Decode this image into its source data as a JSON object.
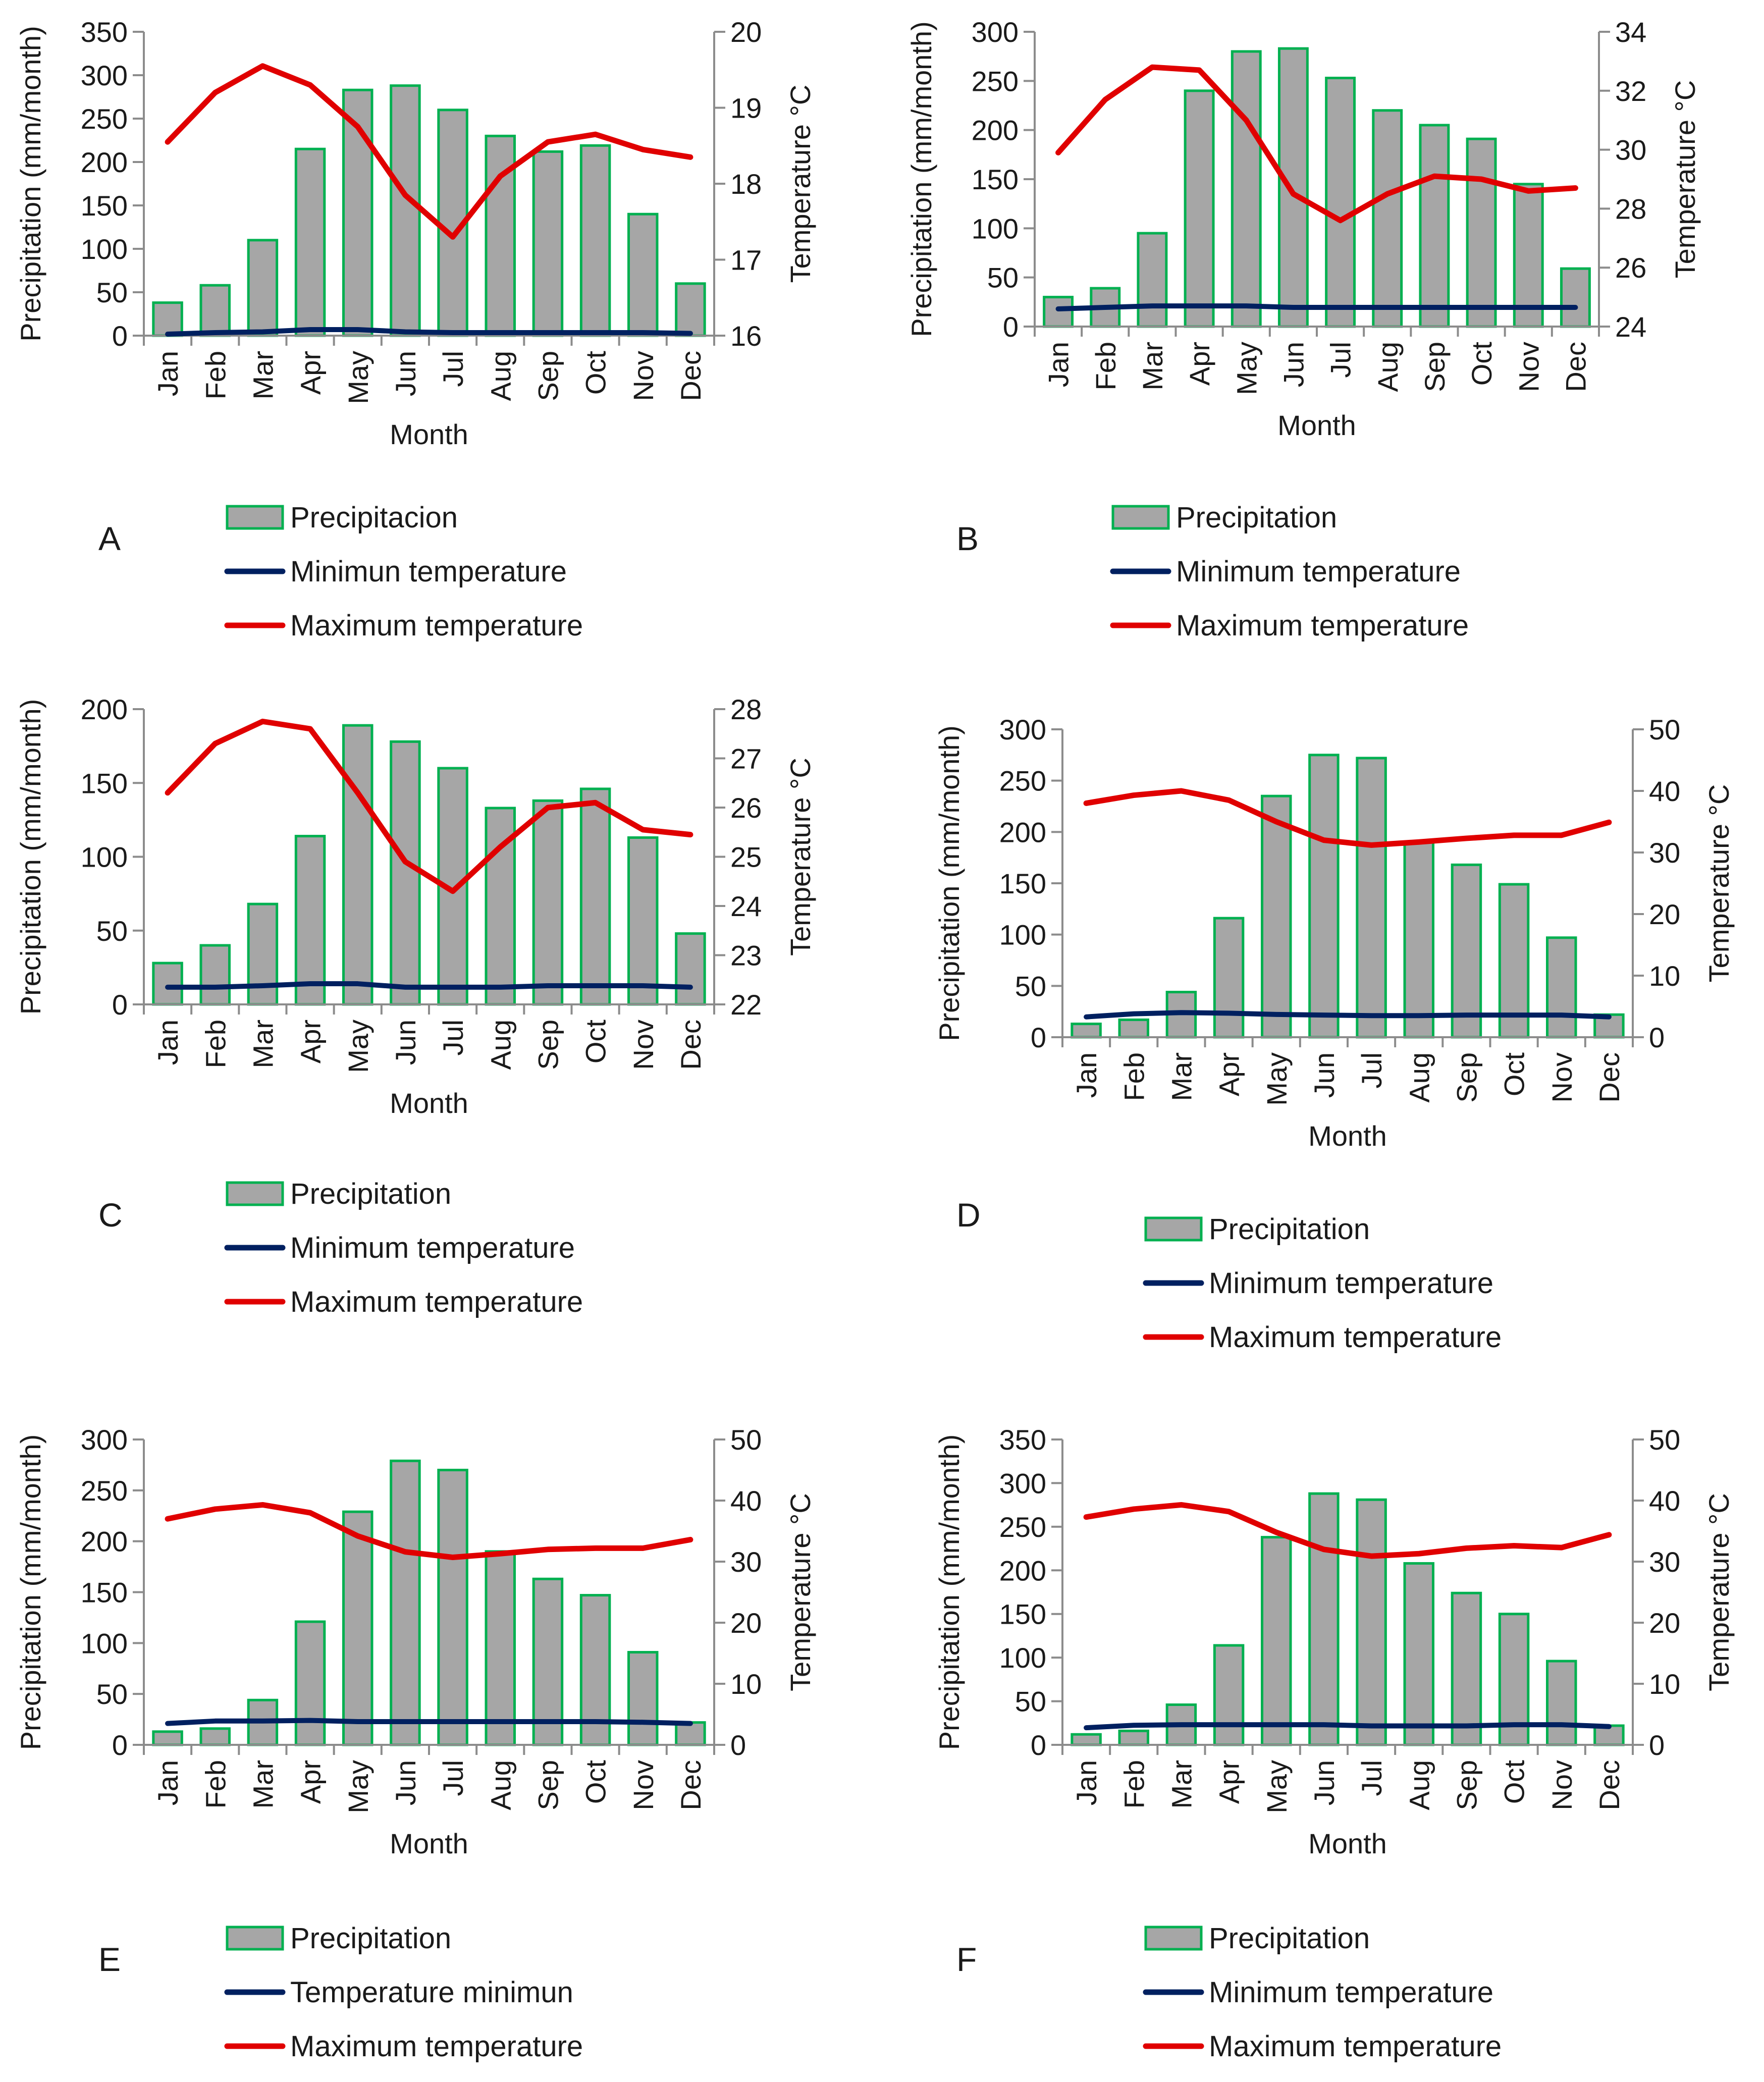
{
  "colors": {
    "bar_fill": "#a6a6a6",
    "bar_stroke": "#00b050",
    "min_line": "#002060",
    "max_line": "#e00000",
    "axis": "#8c8c8c"
  },
  "chart_data": [
    {
      "panel": "A",
      "type": "bar",
      "categories": [
        "Jan",
        "Feb",
        "Mar",
        "Apr",
        "May",
        "Jun",
        "Jul",
        "Aug",
        "Sep",
        "Oct",
        "Nov",
        "Dec"
      ],
      "xlabel": "Month",
      "ylabel": "Precipitation (mm/month)",
      "y2label": "Temperature °C",
      "ylim": [
        0,
        350
      ],
      "yticks": [
        0,
        50,
        100,
        150,
        200,
        250,
        300,
        350
      ],
      "y2lim": [
        16,
        20
      ],
      "y2ticks": [
        16,
        17,
        18,
        19,
        20
      ],
      "series": [
        {
          "name": "Precipitacion",
          "kind": "bar",
          "axis": "left",
          "values": [
            38,
            58,
            110,
            215,
            283,
            288,
            260,
            230,
            212,
            219,
            140,
            60
          ]
        },
        {
          "name": "Minimun temperature",
          "kind": "line",
          "axis": "right",
          "values": [
            16.02,
            16.04,
            16.05,
            16.08,
            16.08,
            16.05,
            16.04,
            16.04,
            16.04,
            16.04,
            16.04,
            16.03
          ]
        },
        {
          "name": "Maximum temperature",
          "kind": "line",
          "axis": "right",
          "values": [
            18.55,
            19.2,
            19.55,
            19.3,
            18.75,
            17.85,
            17.3,
            18.1,
            18.55,
            18.65,
            18.45,
            18.35
          ]
        }
      ],
      "legend": [
        "Precipitacion",
        "Minimun temperature",
        "Maximum temperature"
      ]
    },
    {
      "panel": "B",
      "type": "bar",
      "categories": [
        "Jan",
        "Feb",
        "Mar",
        "Apr",
        "May",
        "Jun",
        "Jul",
        "Aug",
        "Sep",
        "Oct",
        "Nov",
        "Dec"
      ],
      "xlabel": "Month",
      "ylabel": "Precipitation (mm/month)",
      "y2label": "Temperature °C",
      "ylim": [
        0,
        300
      ],
      "yticks": [
        0,
        50,
        100,
        150,
        200,
        250,
        300
      ],
      "y2lim": [
        24,
        34
      ],
      "y2ticks": [
        24,
        26,
        28,
        30,
        32,
        34
      ],
      "series": [
        {
          "name": "Precipitation",
          "kind": "bar",
          "axis": "left",
          "values": [
            30,
            39,
            95,
            240,
            280,
            283,
            253,
            220,
            205,
            191,
            145,
            59
          ]
        },
        {
          "name": "Minimum temperature",
          "kind": "line",
          "axis": "right",
          "values": [
            24.6,
            24.65,
            24.7,
            24.7,
            24.7,
            24.65,
            24.65,
            24.65,
            24.65,
            24.65,
            24.65,
            24.65
          ]
        },
        {
          "name": "Maximum temperature",
          "kind": "line",
          "axis": "right",
          "values": [
            29.9,
            31.7,
            32.8,
            32.7,
            31,
            28.5,
            27.6,
            28.5,
            29.1,
            29,
            28.6,
            28.7
          ]
        }
      ],
      "legend": [
        "Precipitation",
        "Minimum temperature",
        "Maximum temperature"
      ]
    },
    {
      "panel": "C",
      "type": "bar",
      "categories": [
        "Jan",
        "Feb",
        "Mar",
        "Apr",
        "May",
        "Jun",
        "Jul",
        "Aug",
        "Sep",
        "Oct",
        "Nov",
        "Dec"
      ],
      "xlabel": "Month",
      "ylabel": "Precipitation (mm/month)",
      "y2label": "Temperature °C",
      "ylim": [
        0,
        200
      ],
      "yticks": [
        0,
        50,
        100,
        150,
        200
      ],
      "y2lim": [
        22,
        28
      ],
      "y2ticks": [
        22,
        23,
        24,
        25,
        26,
        27,
        28
      ],
      "series": [
        {
          "name": "Precipitation",
          "kind": "bar",
          "axis": "left",
          "values": [
            28,
            40,
            68,
            114,
            189,
            178,
            160,
            133,
            138,
            146,
            113,
            48
          ]
        },
        {
          "name": "Minimum temperature",
          "kind": "line",
          "axis": "right",
          "values": [
            22.35,
            22.35,
            22.38,
            22.42,
            22.42,
            22.35,
            22.35,
            22.35,
            22.38,
            22.38,
            22.38,
            22.35
          ]
        },
        {
          "name": "Maximum temperature",
          "kind": "line",
          "axis": "right",
          "values": [
            26.3,
            27.3,
            27.75,
            27.6,
            26.3,
            24.9,
            24.3,
            25.2,
            26,
            26.1,
            25.55,
            25.45
          ]
        }
      ],
      "legend": [
        "Precipitation",
        "Minimum temperature",
        "Maximum temperature"
      ]
    },
    {
      "panel": "D",
      "type": "bar",
      "categories": [
        "Jan",
        "Feb",
        "Mar",
        "Apr",
        "May",
        "Jun",
        "Jul",
        "Aug",
        "Sep",
        "Oct",
        "Nov",
        "Dec"
      ],
      "xlabel": "Month",
      "ylabel": "Precipitation (mm/month)",
      "y2label": "Temperature °C",
      "ylim": [
        0,
        300
      ],
      "yticks": [
        0,
        50,
        100,
        150,
        200,
        250,
        300
      ],
      "y2lim": [
        0,
        50
      ],
      "y2ticks": [
        0,
        10,
        20,
        30,
        40,
        50
      ],
      "series": [
        {
          "name": "Precipitation",
          "kind": "bar",
          "axis": "left",
          "values": [
            13,
            17,
            44,
            116,
            235,
            275,
            272,
            190,
            168,
            149,
            97,
            22
          ]
        },
        {
          "name": "Minimum temperature",
          "kind": "line",
          "axis": "right",
          "values": [
            3.3,
            3.8,
            4,
            3.9,
            3.7,
            3.6,
            3.5,
            3.5,
            3.6,
            3.6,
            3.6,
            3.3
          ]
        },
        {
          "name": "Maximum temperature",
          "kind": "line",
          "axis": "right",
          "values": [
            38,
            39.3,
            40,
            38.5,
            35,
            32,
            31.2,
            31.7,
            32.3,
            32.8,
            32.8,
            34.9
          ]
        }
      ],
      "legend": [
        "Precipitation",
        "Minimum temperature",
        "Maximum temperature"
      ]
    },
    {
      "panel": "E",
      "type": "bar",
      "categories": [
        "Jan",
        "Feb",
        "Mar",
        "Apr",
        "May",
        "Jun",
        "Jul",
        "Aug",
        "Sep",
        "Oct",
        "Nov",
        "Dec"
      ],
      "xlabel": "Month",
      "ylabel": "Precipitation (mm/month)",
      "y2label": "Temperature °C",
      "ylim": [
        0,
        300
      ],
      "yticks": [
        0,
        50,
        100,
        150,
        200,
        250,
        300
      ],
      "y2lim": [
        0,
        50
      ],
      "y2ticks": [
        0,
        10,
        20,
        30,
        40,
        50
      ],
      "series": [
        {
          "name": "Precipitation",
          "kind": "bar",
          "axis": "left",
          "values": [
            13,
            16,
            44,
            121,
            229,
            279,
            270,
            190,
            163,
            147,
            91,
            22
          ]
        },
        {
          "name": "Temperature minimun",
          "kind": "line",
          "axis": "right",
          "values": [
            3.5,
            3.9,
            3.9,
            4,
            3.8,
            3.8,
            3.8,
            3.8,
            3.8,
            3.8,
            3.7,
            3.5
          ]
        },
        {
          "name": "Maximum temperature",
          "kind": "line",
          "axis": "right",
          "values": [
            37,
            38.6,
            39.3,
            38,
            34.2,
            31.6,
            30.7,
            31.3,
            32,
            32.2,
            32.2,
            33.6
          ]
        }
      ],
      "legend": [
        "Precipitation",
        "Temperature minimun",
        "Maximum temperature"
      ]
    },
    {
      "panel": "F",
      "type": "bar",
      "categories": [
        "Jan",
        "Feb",
        "Mar",
        "Apr",
        "May",
        "Jun",
        "Jul",
        "Aug",
        "Sep",
        "Oct",
        "Nov",
        "Dec"
      ],
      "xlabel": "Month",
      "ylabel": "Precipitation (mm/month)",
      "y2label": "Temperature °C",
      "ylim": [
        0,
        350
      ],
      "yticks": [
        0,
        50,
        100,
        150,
        200,
        250,
        300,
        350
      ],
      "y2lim": [
        0,
        50
      ],
      "y2ticks": [
        0,
        10,
        20,
        30,
        40,
        50
      ],
      "series": [
        {
          "name": "Precipitation",
          "kind": "bar",
          "axis": "left",
          "values": [
            12,
            16,
            46,
            114,
            238,
            288,
            281,
            208,
            174,
            150,
            96,
            22
          ]
        },
        {
          "name": "Minimum temperature",
          "kind": "line",
          "axis": "right",
          "values": [
            2.8,
            3.2,
            3.3,
            3.3,
            3.3,
            3.3,
            3.1,
            3.1,
            3.1,
            3.3,
            3.3,
            3
          ]
        },
        {
          "name": "Maximum temperature",
          "kind": "line",
          "axis": "right",
          "values": [
            37.3,
            38.6,
            39.3,
            38.2,
            34.8,
            32,
            30.9,
            31.3,
            32.2,
            32.6,
            32.3,
            34.4
          ]
        }
      ],
      "legend": [
        "Precipitation",
        "Minimum temperature",
        "Maximum temperature"
      ]
    }
  ]
}
